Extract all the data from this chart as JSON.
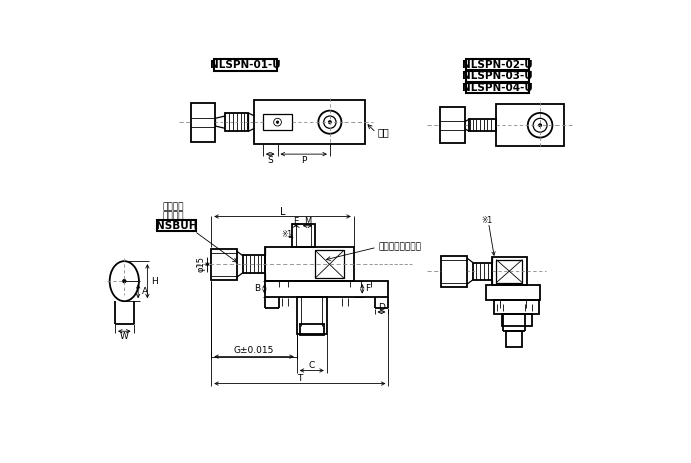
{
  "bg_color": "#ffffff",
  "title1": "NLSPN-01-U",
  "title2": "NLSPN-02-U",
  "title3": "NLSPN-03-U",
  "title4": "NLSPN-04-U",
  "label_main": "主体",
  "label_bolt_line1": "带聚氨酯",
  "label_bolt_line2": "止动螺栓",
  "label_nsbuh": "NSBUH",
  "label_hex": "内六角圆柱头螺栓",
  "note1": "※1",
  "phi15": "φ15"
}
